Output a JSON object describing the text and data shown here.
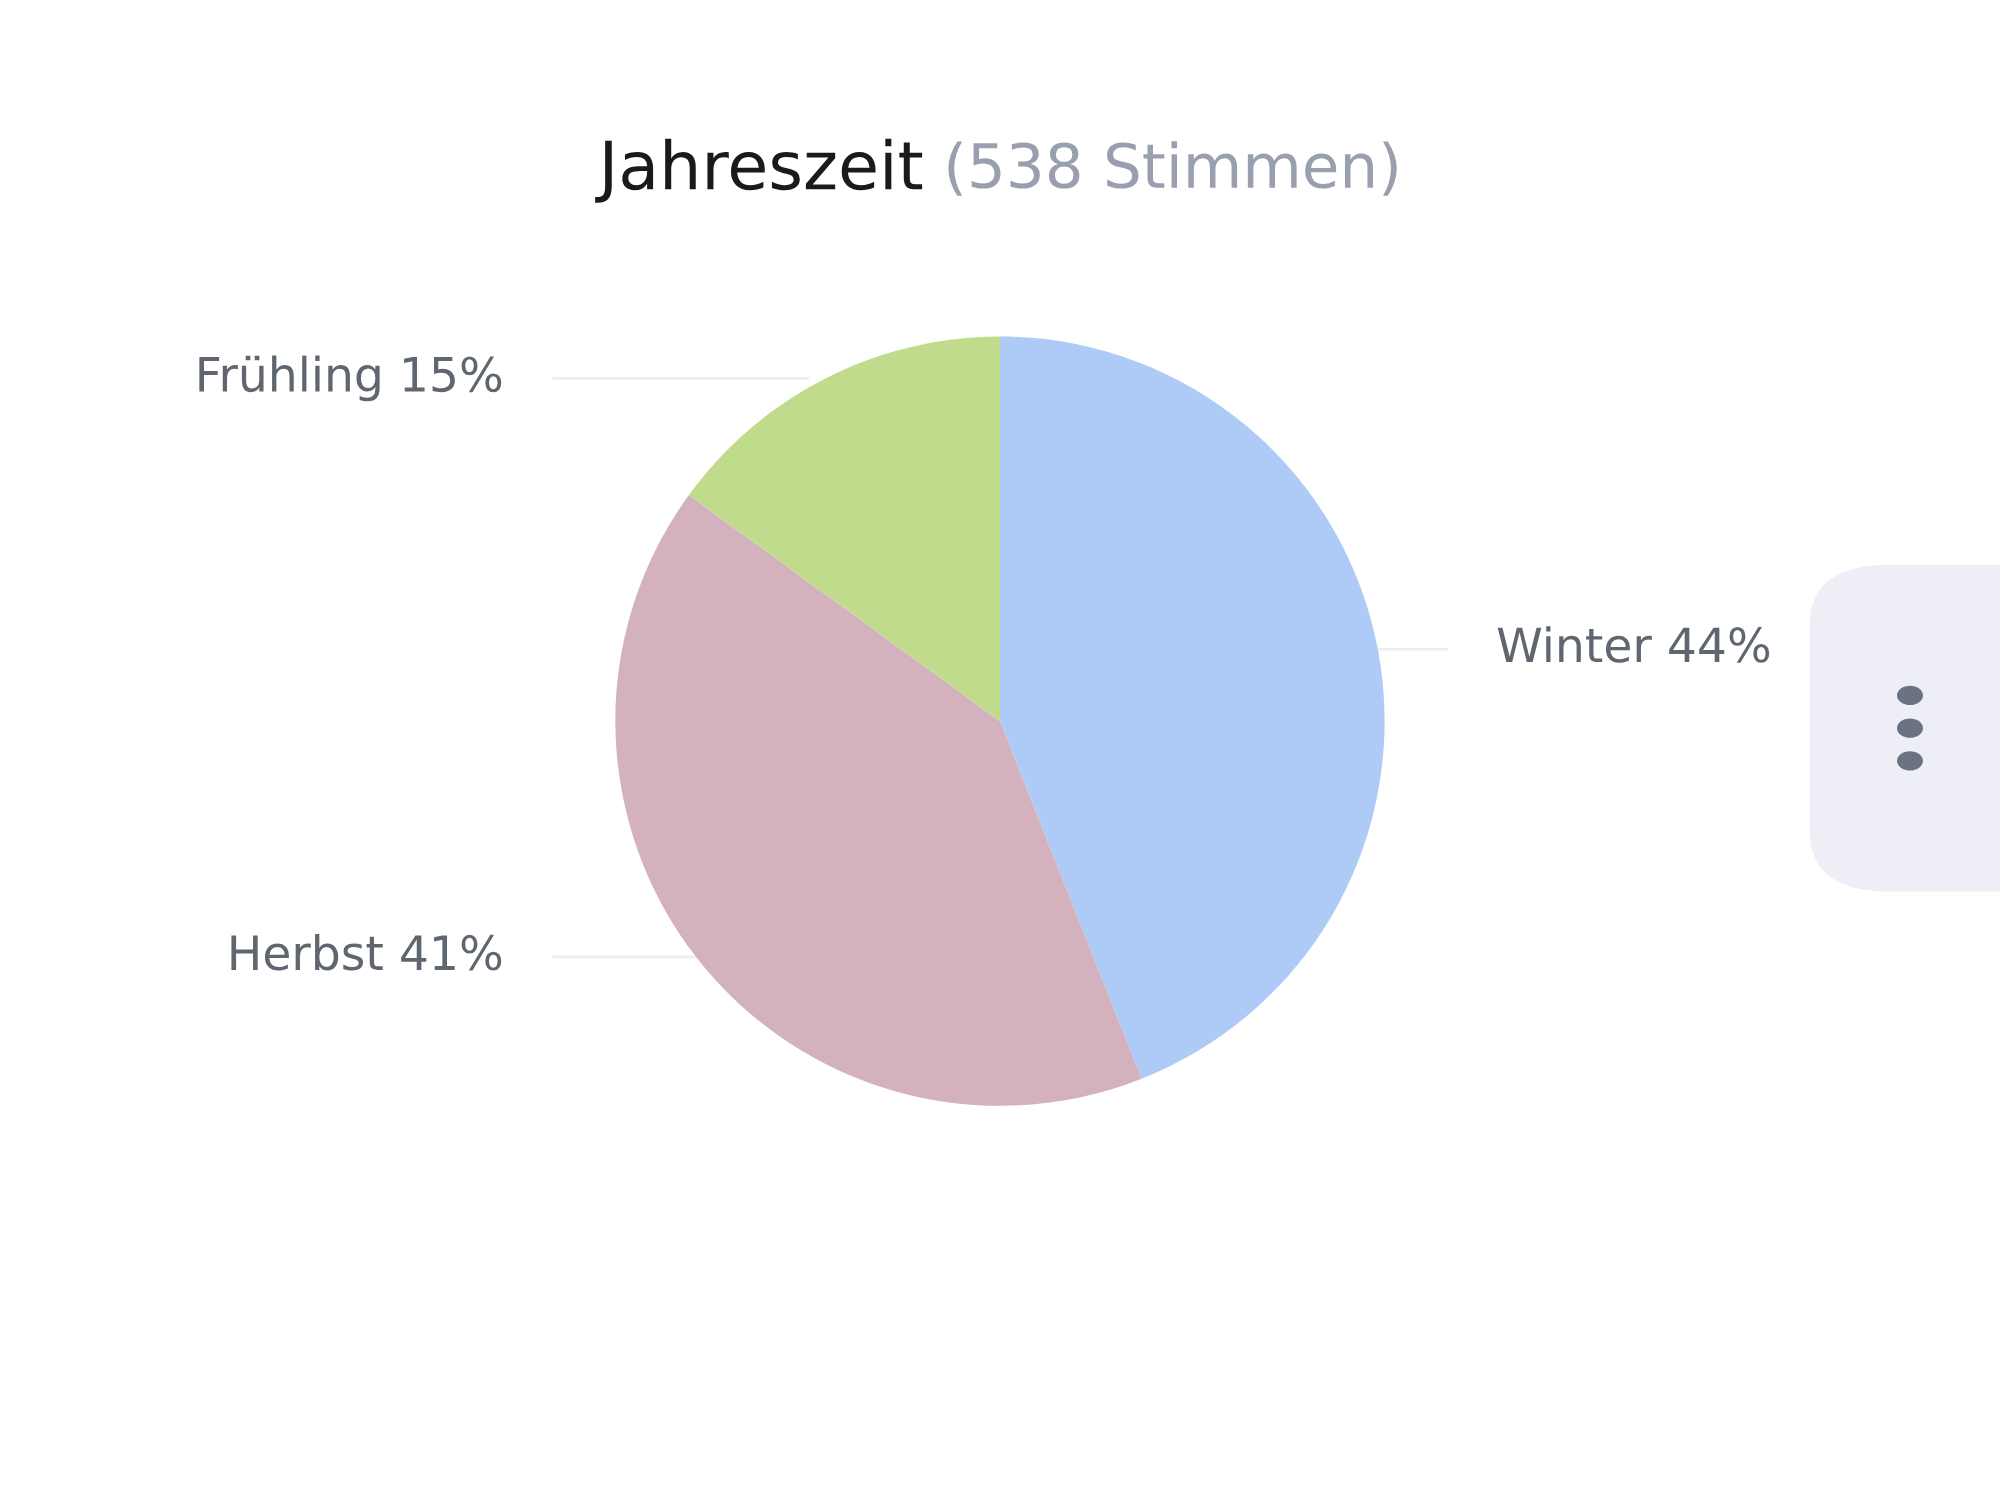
{
  "chart_data": {
    "type": "pie",
    "title": "Jahreszeit",
    "subtitle": "(538 Stimmen)",
    "categories": [
      "Winter",
      "Herbst",
      "Frühling"
    ],
    "values": [
      44,
      41,
      15
    ],
    "colors": [
      "#aecbf7",
      "#d4b2bd",
      "#c1db8c"
    ],
    "value_labels": [
      "44%",
      "41%",
      "15%"
    ],
    "legend": false
  }
}
